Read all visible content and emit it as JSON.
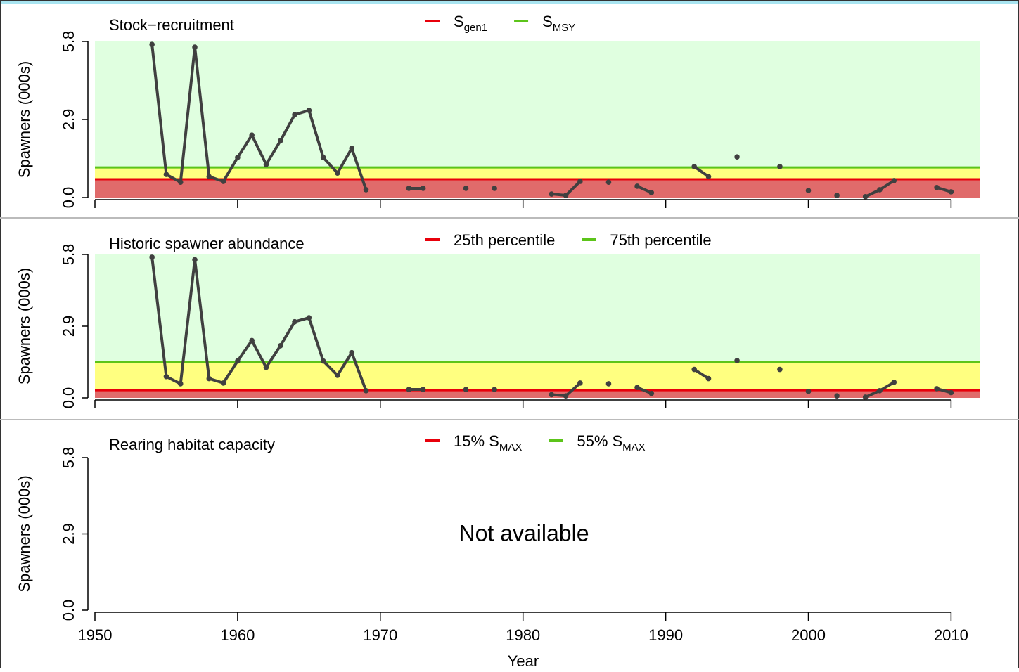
{
  "chart_data": [
    {
      "type": "line",
      "title": "Stock−recruitment",
      "ylabel": "Spawners (000s)",
      "x": [
        1954,
        1955,
        1956,
        1957,
        1958,
        1959,
        1960,
        1961,
        1962,
        1963,
        1964,
        1965,
        1966,
        1967,
        1968,
        1969,
        1970,
        1971,
        1972,
        1973,
        1974,
        1975,
        1976,
        1977,
        1978,
        1979,
        1980,
        1981,
        1982,
        1983,
        1984,
        1985,
        1986,
        1987,
        1988,
        1989,
        1990,
        1991,
        1992,
        1993,
        1994,
        1995,
        1996,
        1997,
        1998,
        1999,
        2000,
        2001,
        2002,
        2003,
        2004,
        2005,
        2006,
        2007,
        2008,
        2009,
        2010
      ],
      "values": [
        5.69,
        0.86,
        0.57,
        5.59,
        0.78,
        0.6,
        1.49,
        2.32,
        1.23,
        2.11,
        3.08,
        3.24,
        1.49,
        0.91,
        1.83,
        0.29,
        null,
        null,
        0.34,
        0.34,
        null,
        null,
        0.34,
        null,
        0.34,
        null,
        null,
        null,
        0.13,
        0.08,
        0.6,
        null,
        0.57,
        null,
        0.42,
        0.18,
        null,
        null,
        1.15,
        0.78,
        null,
        1.51,
        null,
        null,
        1.15,
        null,
        0.26,
        null,
        0.08,
        null,
        0.03,
        0.29,
        0.63,
        null,
        null,
        0.37,
        0.21
      ],
      "color": "#404040",
      "xlim": [
        1950,
        2012
      ],
      "ylim": [
        0,
        5.8
      ],
      "xticks": [
        1950,
        1960,
        1970,
        1980,
        1990,
        2000,
        2010
      ],
      "xtick_labels": false,
      "yticks": [
        {
          "value": 0,
          "label": "0.0"
        },
        {
          "value": 2.9,
          "label": "2.9"
        },
        {
          "value": 5.8,
          "label": "5.8"
        }
      ],
      "band_colors": [
        "#e06b6b",
        "#ffff80",
        "#e0ffe0"
      ],
      "reference_lines": [
        {
          "name": "S",
          "sub": "gen1",
          "value": 0.68,
          "color": "#e8000b"
        },
        {
          "name": "S",
          "sub": "MSY",
          "value": 1.12,
          "color": "#5cc41a"
        }
      ]
    },
    {
      "type": "line",
      "title": "Historic spawner abundance",
      "ylabel": "Spawners (000s)",
      "x": [
        1954,
        1955,
        1956,
        1957,
        1958,
        1959,
        1960,
        1961,
        1962,
        1963,
        1964,
        1965,
        1966,
        1967,
        1968,
        1969,
        1970,
        1971,
        1972,
        1973,
        1974,
        1975,
        1976,
        1977,
        1978,
        1979,
        1980,
        1981,
        1982,
        1983,
        1984,
        1985,
        1986,
        1987,
        1988,
        1989,
        1990,
        1991,
        1992,
        1993,
        1994,
        1995,
        1996,
        1997,
        1998,
        1999,
        2000,
        2001,
        2002,
        2003,
        2004,
        2005,
        2006,
        2007,
        2008,
        2009,
        2010
      ],
      "values": [
        5.69,
        0.86,
        0.57,
        5.59,
        0.78,
        0.6,
        1.49,
        2.32,
        1.23,
        2.11,
        3.08,
        3.24,
        1.49,
        0.91,
        1.83,
        0.29,
        null,
        null,
        0.34,
        0.34,
        null,
        null,
        0.34,
        null,
        0.34,
        null,
        null,
        null,
        0.13,
        0.08,
        0.6,
        null,
        0.57,
        null,
        0.42,
        0.18,
        null,
        null,
        1.15,
        0.78,
        null,
        1.51,
        null,
        null,
        1.15,
        null,
        0.26,
        null,
        0.08,
        null,
        0.03,
        0.29,
        0.63,
        null,
        null,
        0.37,
        0.21
      ],
      "color": "#404040",
      "xlim": [
        1950,
        2012
      ],
      "ylim": [
        0,
        5.8
      ],
      "xticks": [
        1950,
        1960,
        1970,
        1980,
        1990,
        2000,
        2010
      ],
      "xtick_labels": false,
      "yticks": [
        {
          "value": 0,
          "label": "0.0"
        },
        {
          "value": 2.9,
          "label": "2.9"
        },
        {
          "value": 5.8,
          "label": "5.8"
        }
      ],
      "band_colors": [
        "#e06b6b",
        "#ffff80",
        "#e0ffe0"
      ],
      "reference_lines": [
        {
          "name": "25th percentile",
          "value": 0.31,
          "color": "#e8000b"
        },
        {
          "name": "75th percentile",
          "value": 1.45,
          "color": "#5cc41a"
        }
      ]
    },
    {
      "type": "line",
      "title": "Rearing habitat capacity",
      "ylabel": "Spawners (000s)",
      "xlabel": "Year",
      "annotation": "Not available",
      "xlim": [
        1950,
        2012
      ],
      "ylim": [
        0,
        5.8
      ],
      "xticks": [
        1950,
        1960,
        1970,
        1980,
        1990,
        2000,
        2010
      ],
      "xtick_labels": true,
      "yticks": [
        {
          "value": 0,
          "label": "0.0"
        },
        {
          "value": 2.9,
          "label": "2.9"
        },
        {
          "value": 5.8,
          "label": "5.8"
        }
      ],
      "reference_lines": [
        {
          "name": "15% S",
          "sub": "MAX",
          "color": "#e8000b"
        },
        {
          "name": "55% S",
          "sub": "MAX",
          "color": "#5cc41a"
        }
      ]
    }
  ]
}
